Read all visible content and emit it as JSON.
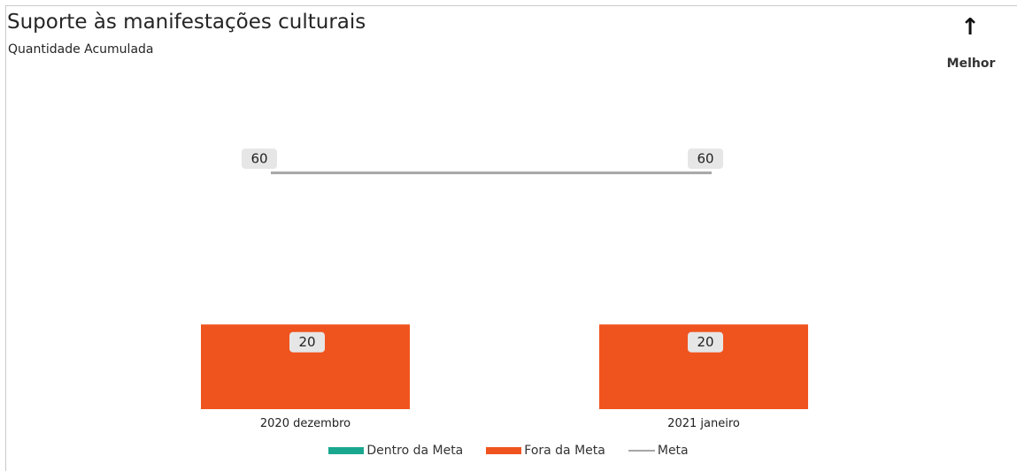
{
  "header": {
    "title": "Suporte às manifestações culturais",
    "subtitle": "Quantidade Acumulada",
    "direction_icon": "arrow-up-icon",
    "direction_label": "Melhor"
  },
  "colors": {
    "dentro": "#1aa78f",
    "fora": "#f0541e",
    "meta": "#a6a6a6",
    "label_bg": "#e6e6e6"
  },
  "legend": [
    {
      "label": "Dentro da Meta",
      "kind": "bar",
      "color": "#1aa78f"
    },
    {
      "label": "Fora da Meta",
      "kind": "bar",
      "color": "#f0541e"
    },
    {
      "label": "Meta",
      "kind": "line",
      "color": "#a6a6a6"
    }
  ],
  "chart_data": {
    "type": "bar",
    "categories": [
      "2020 dezembro",
      "2021 janeiro"
    ],
    "series": [
      {
        "name": "Dentro da Meta",
        "values": [
          0,
          0
        ]
      },
      {
        "name": "Fora da Meta",
        "values": [
          20,
          20
        ]
      },
      {
        "name": "Meta",
        "type": "line",
        "values": [
          60,
          60
        ]
      }
    ],
    "data_labels": {
      "bars": [
        "20",
        "20"
      ],
      "meta": [
        "60",
        "60"
      ]
    },
    "ylim": [
      0,
      62
    ],
    "grid": false,
    "legend_position": "bottom"
  }
}
